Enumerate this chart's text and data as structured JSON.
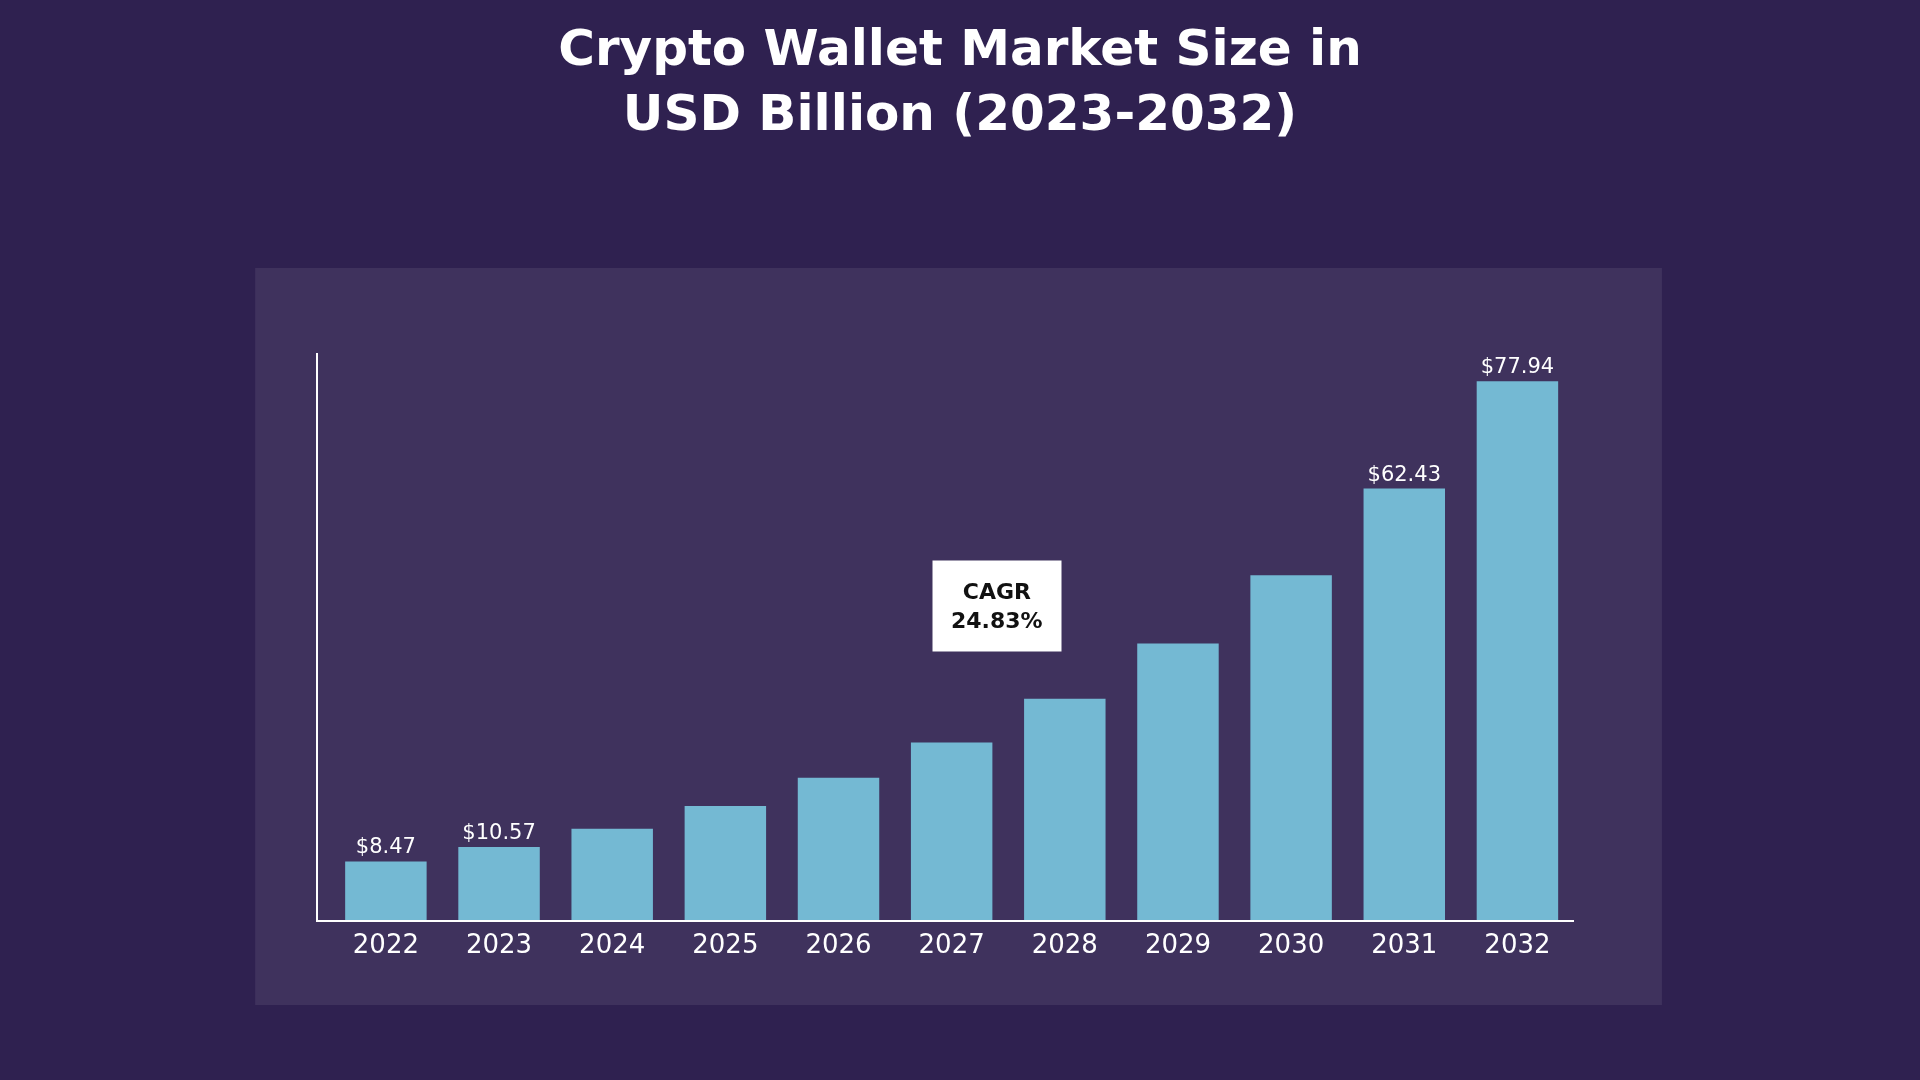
{
  "chart_data": {
    "type": "bar",
    "title": "Crypto Wallet Market Size in\nUSD Billion (2023-2032)",
    "categories": [
      "2022",
      "2023",
      "2024",
      "2025",
      "2026",
      "2027",
      "2028",
      "2029",
      "2030",
      "2031",
      "2032"
    ],
    "values": [
      8.47,
      10.57,
      13.2,
      16.5,
      20.6,
      25.7,
      32.0,
      40.0,
      49.9,
      62.43,
      77.94
    ],
    "value_labels": [
      "$8.47",
      "$10.57",
      null,
      null,
      null,
      null,
      null,
      null,
      null,
      "$62.43",
      "$77.94"
    ],
    "color": "#74b9d3",
    "annotations": [
      "CAGR\n24.83%"
    ],
    "grid": false,
    "legend": false
  }
}
